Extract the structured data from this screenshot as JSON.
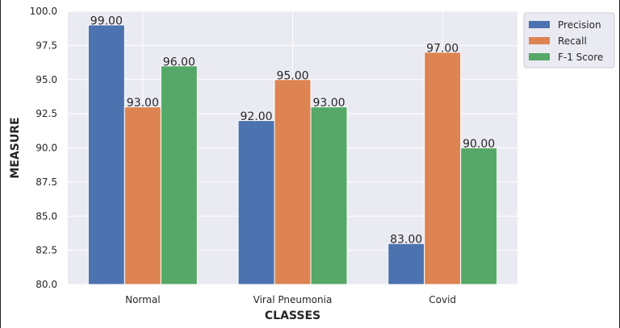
{
  "chart_data": {
    "type": "bar",
    "categories": [
      "Normal",
      "Viral Pneumonia",
      "Covid"
    ],
    "series": [
      {
        "name": "Precision",
        "values": [
          99.0,
          92.0,
          83.0
        ],
        "color": "#4c72b0"
      },
      {
        "name": "Recall",
        "values": [
          93.0,
          95.0,
          97.0
        ],
        "color": "#dd8452"
      },
      {
        "name": "F-1 Score",
        "values": [
          96.0,
          93.0,
          90.0
        ],
        "color": "#55a868"
      }
    ],
    "data_labels": [
      [
        "99.00",
        "92.00",
        "83.00"
      ],
      [
        "93.00",
        "95.00",
        "97.00"
      ],
      [
        "96.00",
        "93.00",
        "90.00"
      ]
    ],
    "title": "",
    "xlabel": "CLASSES",
    "ylabel": "MEASURE",
    "ylim": [
      80.0,
      100.0
    ],
    "yticks": [
      "80.0",
      "82.5",
      "85.0",
      "87.5",
      "90.0",
      "92.5",
      "95.0",
      "97.5",
      "100.0"
    ],
    "yticks_values": [
      80.0,
      82.5,
      85.0,
      87.5,
      90.0,
      92.5,
      95.0,
      97.5,
      100.0
    ],
    "grid": true,
    "legend_position": "top-right",
    "plot_background": "#eaeaf2",
    "grid_color": "#ffffff"
  }
}
